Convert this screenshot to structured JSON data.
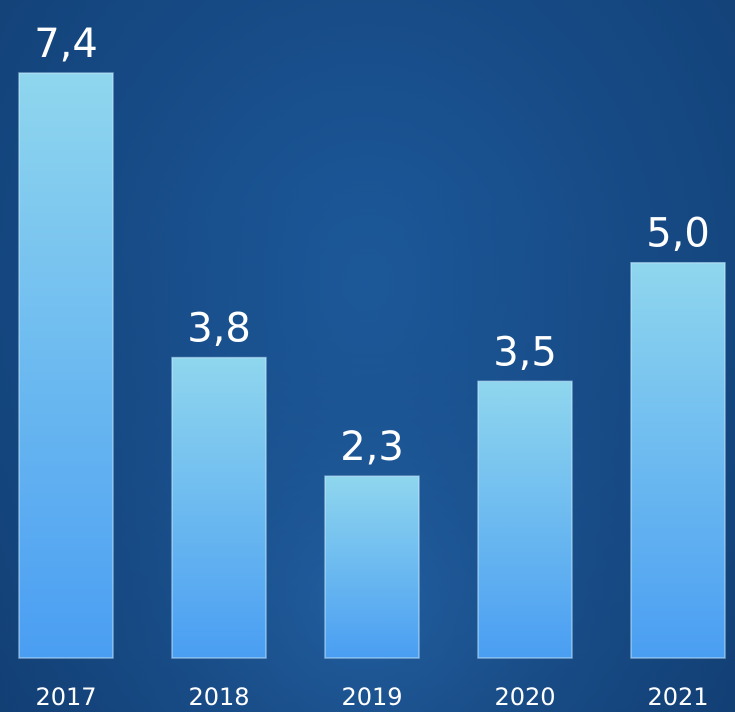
{
  "chart_data": {
    "type": "bar",
    "categories": [
      "2017",
      "2018",
      "2019",
      "2020",
      "2021"
    ],
    "values": [
      7.4,
      3.8,
      2.3,
      3.5,
      5.0
    ],
    "value_labels": [
      "7,4",
      "3,8",
      "2,3",
      "3,5",
      "5,0"
    ],
    "title": "",
    "xlabel": "",
    "ylabel": "",
    "ylim": [
      0,
      7.4
    ],
    "grid": false,
    "legend": "none"
  },
  "colors": {
    "background": "#174c88",
    "bar_top": "#8fd6ee",
    "bar_bottom": "#4a9ef2",
    "text": "#ffffff"
  }
}
